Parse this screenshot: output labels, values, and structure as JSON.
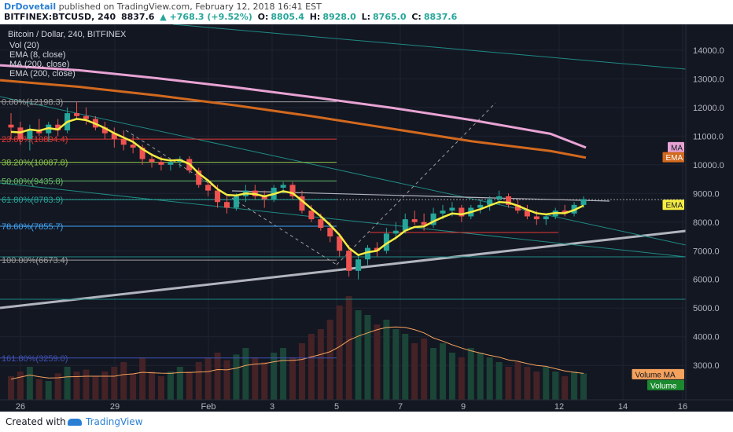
{
  "header": {
    "author": "DrDovetail",
    "published": " published on TradingView.com, February 12, 2018 16:41 EST",
    "symbol": "BITFINEX:BTCUSD, 240",
    "last": "8837.6",
    "change": "▲ +768.3 (+9.52%)",
    "o_label": "O:",
    "o": "8805.4",
    "h_label": "H:",
    "h": "8928.0",
    "l_label": "L:",
    "l": "8765.0",
    "c_label": "C:",
    "c": "8837.6"
  },
  "footer": {
    "created_with": "Created with",
    "brand": "TradingView"
  },
  "colors": {
    "bg": "#131722",
    "up": "#26a69a",
    "down": "#ef5350",
    "ema8": "#f5ec42",
    "ma200": "#e8a3d4",
    "ema200": "#d2691e"
  },
  "chart_data": {
    "type": "candlestick",
    "title": "Bitcoin / Dollar, 240, BITFINEX",
    "indicators": [
      "Vol (20)",
      "EMA (8, close)",
      "MA (200, close)",
      "EMA (200, close)"
    ],
    "yticks": [
      "14000.0",
      "13000.0",
      "12000.0",
      "11000.0",
      "10000.0",
      "9000.0",
      "8000.0",
      "7000.0",
      "6000.0",
      "5000.0",
      "4000.0",
      "3000.0"
    ],
    "xticks": [
      "26",
      "29",
      "Feb",
      "3",
      "5",
      "7",
      "9",
      "12",
      "14",
      "16"
    ],
    "ylim": [
      1800,
      14900
    ],
    "fib": [
      {
        "label": "0.00%(12198.3)",
        "value": 12198.3,
        "color": "#9e9e9e"
      },
      {
        "label": "23.60%(10894.4)",
        "value": 10894.4,
        "color": "#e53935"
      },
      {
        "label": "38.20%(10087.8)",
        "value": 10087.8,
        "color": "#8bc34a"
      },
      {
        "label": "50.00%(9435.8)",
        "value": 9435.8,
        "color": "#66bb6a"
      },
      {
        "label": "61.80%(8783.9)",
        "value": 8783.9,
        "color": "#26a69a"
      },
      {
        "label": "78.60%(7855.7)",
        "value": 7855.7,
        "color": "#42a5f5"
      },
      {
        "label": "100.00%(6673.4)",
        "value": 6673.4,
        "color": "#9e9e9e"
      },
      {
        "label": "161.80%(3259.0)",
        "value": 3259.0,
        "color": "#3f51b5"
      }
    ],
    "price_tags": [
      {
        "text": "MA",
        "value": 10600,
        "bg": "#e8a3d4",
        "fg": "#131722"
      },
      {
        "text": "EMA",
        "value": 10250,
        "bg": "#d2691e",
        "fg": "#ffffff"
      },
      {
        "text": "EMA",
        "value": 8590,
        "bg": "#f5ec42",
        "fg": "#131722"
      },
      {
        "text": "Volume MA",
        "value": 2680,
        "bg": "#f5a25d",
        "fg": "#131722"
      },
      {
        "text": "Volume",
        "value": 2300,
        "bg": "#1b8a2f",
        "fg": "#ffffff"
      }
    ],
    "candles": [
      [
        11400,
        11800,
        10900,
        11300
      ],
      [
        11300,
        11500,
        10700,
        10900
      ],
      [
        10900,
        11400,
        10500,
        11200
      ],
      [
        11200,
        11600,
        11000,
        11100
      ],
      [
        11100,
        11500,
        10800,
        11400
      ],
      [
        11400,
        11600,
        11000,
        11200
      ],
      [
        11200,
        12000,
        11100,
        11800
      ],
      [
        11800,
        12200,
        11600,
        11700
      ],
      [
        11700,
        12000,
        11400,
        11600
      ],
      [
        11600,
        11700,
        11200,
        11300
      ],
      [
        11300,
        11500,
        10900,
        11100
      ],
      [
        11100,
        11300,
        10600,
        10900
      ],
      [
        10900,
        11200,
        10500,
        10700
      ],
      [
        10700,
        11000,
        10400,
        10600
      ],
      [
        10600,
        10700,
        10000,
        10200
      ],
      [
        10200,
        10400,
        9900,
        10100
      ],
      [
        10100,
        10300,
        9800,
        10000
      ],
      [
        10000,
        10200,
        9800,
        10100
      ],
      [
        10100,
        10300,
        9900,
        10200
      ],
      [
        10200,
        10300,
        9700,
        9800
      ],
      [
        9800,
        9900,
        9200,
        9300
      ],
      [
        9300,
        9500,
        8900,
        9100
      ],
      [
        9100,
        9300,
        8500,
        8700
      ],
      [
        8700,
        8900,
        8300,
        8500
      ],
      [
        8500,
        9000,
        8400,
        8900
      ],
      [
        8900,
        9300,
        8700,
        9100
      ],
      [
        9100,
        9300,
        8800,
        8900
      ],
      [
        8900,
        9100,
        8500,
        8800
      ],
      [
        8800,
        9300,
        8700,
        9200
      ],
      [
        9200,
        9400,
        9000,
        9300
      ],
      [
        9300,
        9400,
        8800,
        8900
      ],
      [
        8900,
        9100,
        8300,
        8400
      ],
      [
        8400,
        8600,
        8000,
        8100
      ],
      [
        8100,
        8300,
        7700,
        7800
      ],
      [
        7800,
        8000,
        7300,
        7500
      ],
      [
        7500,
        7600,
        6800,
        7000
      ],
      [
        7000,
        7200,
        6100,
        6300
      ],
      [
        6300,
        6900,
        6000,
        6700
      ],
      [
        6700,
        7200,
        6500,
        7100
      ],
      [
        7100,
        7300,
        6800,
        7000
      ],
      [
        7000,
        7800,
        6900,
        7600
      ],
      [
        7600,
        8000,
        7400,
        7700
      ],
      [
        7700,
        8300,
        7600,
        8100
      ],
      [
        8100,
        8400,
        7900,
        8000
      ],
      [
        8000,
        8300,
        7700,
        7900
      ],
      [
        7900,
        8500,
        7800,
        8300
      ],
      [
        8300,
        8600,
        8100,
        8400
      ],
      [
        8400,
        8700,
        8200,
        8500
      ],
      [
        8500,
        8600,
        8000,
        8200
      ],
      [
        8200,
        8600,
        8100,
        8500
      ],
      [
        8500,
        8800,
        8300,
        8600
      ],
      [
        8600,
        8900,
        8400,
        8800
      ],
      [
        8800,
        9100,
        8600,
        8900
      ],
      [
        8900,
        9000,
        8500,
        8600
      ],
      [
        8600,
        8800,
        8300,
        8400
      ],
      [
        8400,
        8600,
        8100,
        8200
      ],
      [
        8200,
        8400,
        7900,
        8100
      ],
      [
        8100,
        8300,
        7900,
        8200
      ],
      [
        8200,
        8500,
        8100,
        8400
      ],
      [
        8400,
        8600,
        8200,
        8300
      ],
      [
        8300,
        8700,
        8200,
        8600
      ],
      [
        8600,
        8900,
        8500,
        8800
      ]
    ],
    "ema8": [
      11150,
      11130,
      11230,
      11190,
      11280,
      11230,
      11500,
      11600,
      11560,
      11430,
      11280,
      11100,
      10950,
      10800,
      10550,
      10350,
      10200,
      10150,
      10170,
      10030,
      9700,
      9450,
      9150,
      8950,
      8930,
      9000,
      8980,
      8900,
      8980,
      9080,
      9010,
      8750,
      8470,
      8200,
      7900,
      7550,
      7100,
      6850,
      6950,
      7000,
      7250,
      7450,
      7700,
      7830,
      7850,
      8020,
      8170,
      8300,
      8270,
      8350,
      8450,
      8580,
      8700,
      8680,
      8570,
      8430,
      8310,
      8270,
      8320,
      8310,
      8420,
      8580
    ],
    "ma200": [
      [
        0,
        13470
      ],
      [
        100,
        13300
      ],
      [
        200,
        13020
      ],
      [
        300,
        12700
      ],
      [
        400,
        12350
      ],
      [
        500,
        11980
      ],
      [
        600,
        11560
      ],
      [
        700,
        11080
      ],
      [
        745,
        10600
      ]
    ],
    "ema200": [
      [
        0,
        12950
      ],
      [
        100,
        12720
      ],
      [
        200,
        12420
      ],
      [
        300,
        12070
      ],
      [
        400,
        11680
      ],
      [
        500,
        11250
      ],
      [
        600,
        10820
      ],
      [
        700,
        10480
      ],
      [
        745,
        10250
      ]
    ],
    "volumes": [
      0.25,
      0.3,
      0.35,
      0.22,
      0.2,
      0.28,
      0.35,
      0.3,
      0.32,
      0.25,
      0.3,
      0.35,
      0.4,
      0.28,
      0.45,
      0.3,
      0.25,
      0.3,
      0.35,
      0.3,
      0.4,
      0.45,
      0.5,
      0.42,
      0.48,
      0.55,
      0.45,
      0.4,
      0.5,
      0.55,
      0.45,
      0.6,
      0.7,
      0.75,
      0.85,
      1.0,
      1.1,
      0.95,
      0.9,
      0.8,
      0.85,
      0.75,
      0.7,
      0.6,
      0.65,
      0.55,
      0.6,
      0.5,
      0.45,
      0.55,
      0.5,
      0.45,
      0.4,
      0.35,
      0.4,
      0.35,
      0.3,
      0.35,
      0.3,
      0.25,
      0.3,
      0.28
    ]
  }
}
